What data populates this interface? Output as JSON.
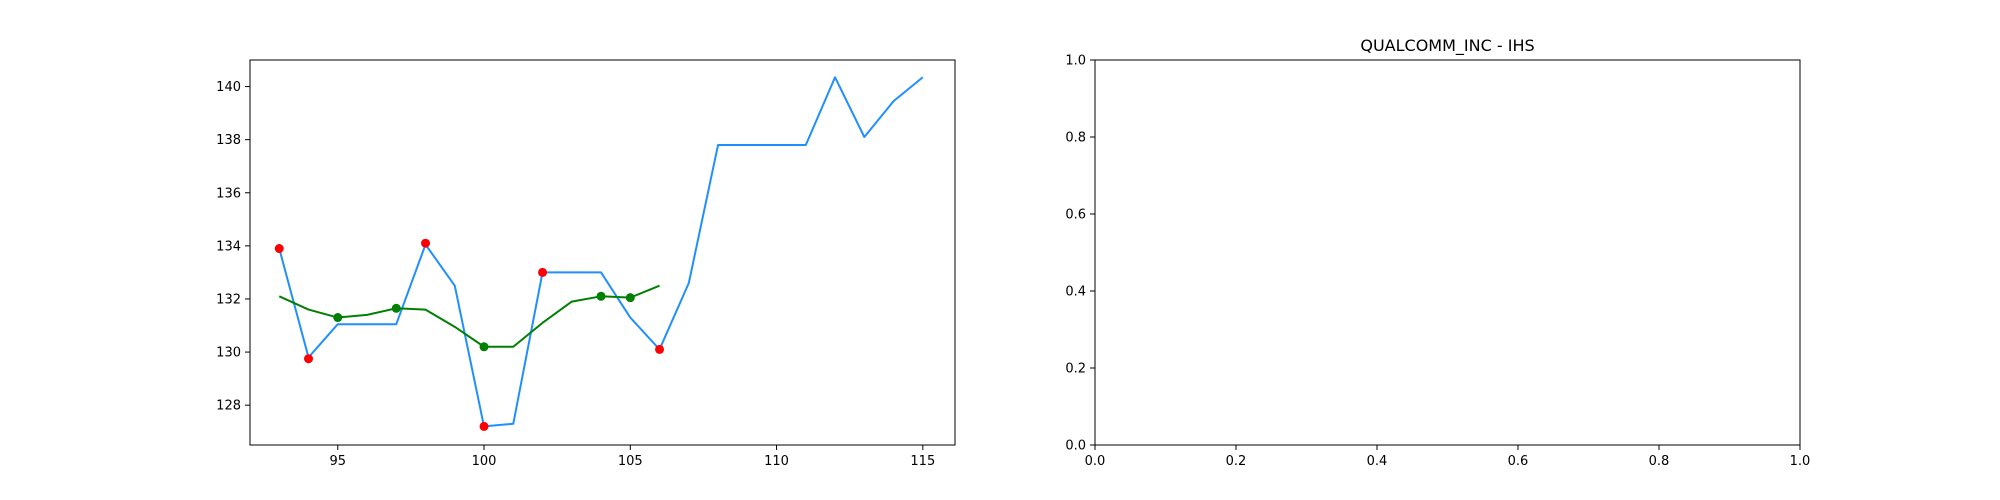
{
  "chart_data": [
    {
      "type": "line",
      "title": "",
      "xlabel": "",
      "ylabel": "",
      "xlim": [
        92,
        116.1
      ],
      "ylim": [
        126.5,
        141.0
      ],
      "xticks": [
        95,
        100,
        105,
        110,
        115
      ],
      "yticks": [
        128,
        130,
        132,
        134,
        136,
        138,
        140
      ],
      "grid": false,
      "colors": {
        "price": "#1f8fff",
        "smooth": "#008000",
        "extrema": "#ff0000",
        "smooth_points": "#008000"
      },
      "series": [
        {
          "role": "price",
          "x": [
            93,
            94,
            95,
            96,
            97,
            98,
            99,
            100,
            101,
            102,
            103,
            104,
            105,
            106,
            107,
            108,
            109,
            110,
            111,
            112,
            113,
            114,
            115
          ],
          "y": [
            133.9,
            129.8,
            131.05,
            131.05,
            131.05,
            134.05,
            132.5,
            127.2,
            127.3,
            133.0,
            133.0,
            133.0,
            131.3,
            130.1,
            132.6,
            137.8,
            137.8,
            137.8,
            137.8,
            140.35,
            138.1,
            139.45,
            140.35
          ]
        },
        {
          "role": "smooth",
          "x": [
            93,
            94,
            95,
            96,
            97,
            98,
            99,
            100,
            101,
            102,
            103,
            104,
            105,
            106
          ],
          "y": [
            132.1,
            131.6,
            131.3,
            131.4,
            131.65,
            131.6,
            130.95,
            130.2,
            130.2,
            131.1,
            131.9,
            132.1,
            132.05,
            132.5
          ]
        },
        {
          "role": "extrema",
          "x": [
            93,
            94,
            98,
            100,
            102,
            106
          ],
          "y": [
            133.9,
            129.75,
            134.1,
            127.2,
            133.0,
            130.1
          ]
        },
        {
          "role": "smooth_points",
          "x": [
            95,
            97,
            100,
            104,
            105
          ],
          "y": [
            131.3,
            131.65,
            130.2,
            132.1,
            132.05
          ]
        }
      ]
    },
    {
      "type": "line",
      "title": "QUALCOMM_INC - IHS",
      "xlabel": "",
      "ylabel": "",
      "xlim": [
        0,
        1
      ],
      "ylim": [
        0,
        1
      ],
      "xticks": [
        0.0,
        0.2,
        0.4,
        0.6,
        0.8,
        1.0
      ],
      "yticks": [
        0.0,
        0.2,
        0.4,
        0.6,
        0.8,
        1.0
      ],
      "grid": false,
      "series": []
    }
  ]
}
